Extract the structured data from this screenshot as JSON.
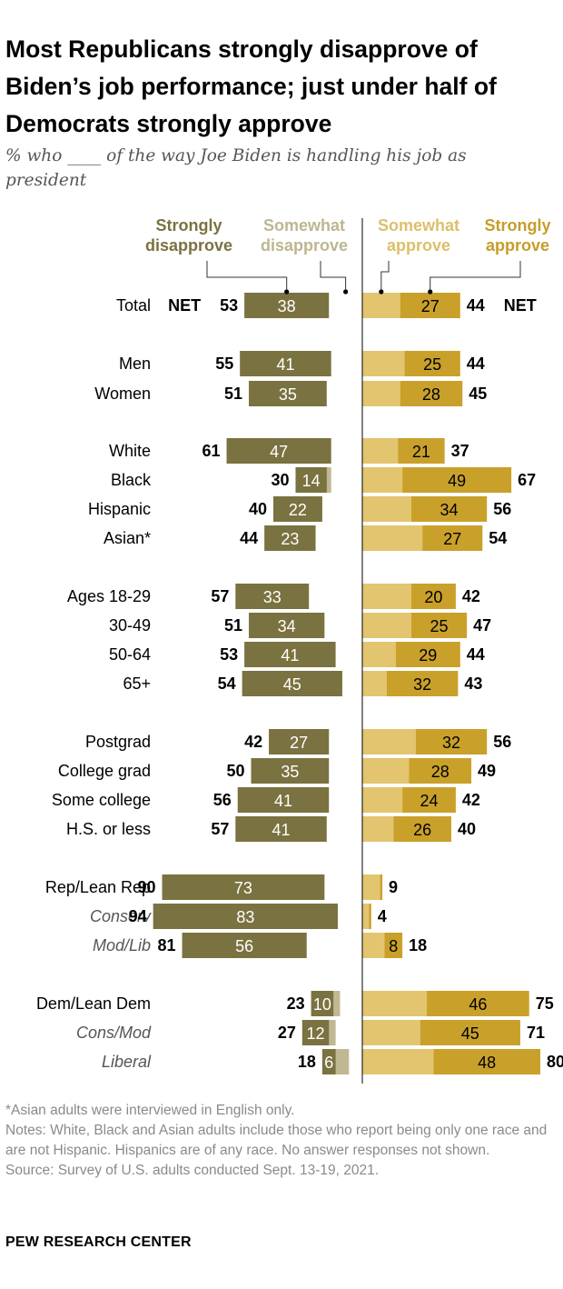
{
  "title": "Most Republicans strongly disapprove of Biden’s job performance; just under half of Democrats strongly approve",
  "subtitle": "% who ____ of the way Joe Biden is handling his job as president",
  "colors": {
    "strongly_disapprove": "#7a7240",
    "somewhat_disapprove": "#c0b893",
    "somewhat_approve": "#e3c56f",
    "strongly_approve": "#c9a02a",
    "legend_strongly_disapprove": "#7a7240",
    "legend_somewhat_disapprove": "#bdb690",
    "legend_somewhat_approve": "#dcbf6a",
    "legend_strongly_approve": "#c79c28"
  },
  "chart_data": {
    "type": "bar",
    "subtype": "diverging-stacked",
    "legend": [
      "Strongly disapprove",
      "Somewhat disapprove",
      "Somewhat approve",
      "Strongly approve"
    ],
    "net_label": "NET",
    "categories": [
      "Total",
      "Men",
      "Women",
      "White",
      "Black",
      "Hispanic",
      "Asian*",
      "Ages 18-29",
      "30-49",
      "50-64",
      "65+",
      "Postgrad",
      "College grad",
      "Some college",
      "H.S. or less",
      "Rep/Lean Rep",
      "Conserv",
      "Mod/Lib",
      "Dem/Lean Dem",
      "Cons/Mod",
      "Liberal"
    ],
    "italic_categories": [
      "Conserv",
      "Mod/Lib",
      "Cons/Mod",
      "Liberal"
    ],
    "series": [
      {
        "name": "Strongly disapprove",
        "values": [
          38,
          41,
          35,
          47,
          14,
          22,
          23,
          33,
          34,
          41,
          45,
          27,
          35,
          41,
          41,
          73,
          83,
          56,
          10,
          12,
          6
        ]
      },
      {
        "name": "NET disapprove",
        "values": [
          53,
          55,
          51,
          61,
          30,
          40,
          44,
          57,
          51,
          53,
          54,
          42,
          50,
          56,
          57,
          90,
          94,
          81,
          23,
          27,
          18
        ]
      },
      {
        "name": "Strongly approve",
        "values": [
          27,
          25,
          28,
          21,
          49,
          34,
          27,
          20,
          25,
          29,
          32,
          32,
          28,
          24,
          26,
          null,
          null,
          8,
          46,
          45,
          48
        ]
      },
      {
        "name": "NET approve",
        "values": [
          44,
          44,
          45,
          37,
          67,
          56,
          54,
          42,
          47,
          44,
          43,
          56,
          49,
          42,
          40,
          9,
          4,
          18,
          75,
          71,
          80
        ]
      }
    ],
    "somewhat_approve_estimate_for_unlabeled_strong": [
      null,
      null,
      null,
      null,
      null,
      null,
      null,
      null,
      null,
      null,
      null,
      null,
      null,
      null,
      null,
      8,
      3,
      null,
      null,
      null,
      null
    ],
    "groups": [
      [
        0
      ],
      [
        1,
        2
      ],
      [
        3,
        4,
        5,
        6
      ],
      [
        7,
        8,
        9,
        10
      ],
      [
        11,
        12,
        13,
        14
      ],
      [
        15,
        16,
        17
      ],
      [
        18,
        19,
        20
      ]
    ]
  },
  "footer": {
    "note1": "*Asian adults were interviewed in English only.",
    "note2": "Notes: White, Black and Asian adults include those who report being only one race and are not Hispanic. Hispanics are of any race. No answer responses not shown.",
    "source": "Source: Survey of U.S. adults conducted Sept. 13-19, 2021."
  },
  "brand": "PEW RESEARCH CENTER"
}
